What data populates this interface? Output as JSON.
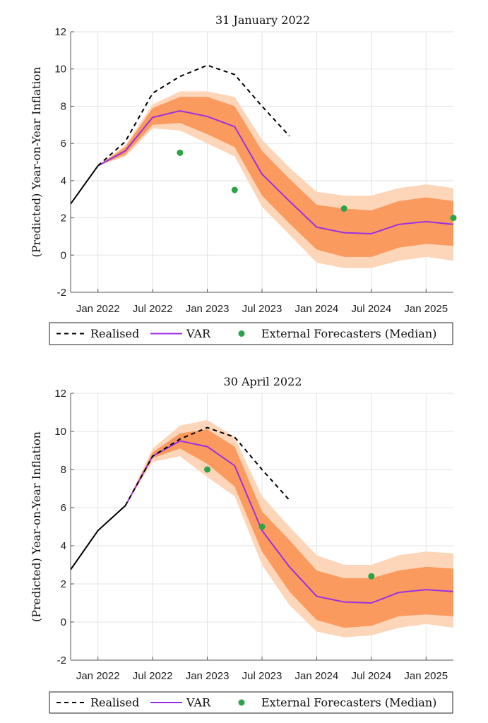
{
  "colors": {
    "realised": "#000000",
    "var": "#9b30e0",
    "inner_band": "#fb9a5e",
    "outer_band": "#fdd5b8",
    "external": "#2ca24a",
    "grid": "#e3e3e3"
  },
  "chart_data": [
    {
      "type": "line",
      "title": "31 January 2022",
      "ylabel": "(Predicted) Year-on-Year Inflation",
      "ylim": [
        -2,
        12
      ],
      "yticks": [
        -2,
        0,
        2,
        4,
        6,
        8,
        10,
        12
      ],
      "x_quarters": [
        "Oct 2021",
        "Jan 2022",
        "Apr 2022",
        "Jul 2022",
        "Oct 2022",
        "Jan 2023",
        "Apr 2023",
        "Jul 2023",
        "Oct 2023",
        "Jan 2024",
        "Apr 2024",
        "Jul 2024",
        "Oct 2024",
        "Jan 2025",
        "Apr 2025"
      ],
      "xticks": [
        {
          "q": 1,
          "label": "Jan 2022"
        },
        {
          "q": 3,
          "label": "Jul 2022"
        },
        {
          "q": 5,
          "label": "Jan 2023"
        },
        {
          "q": 7,
          "label": "Jul 2023"
        },
        {
          "q": 9,
          "label": "Jan 2024"
        },
        {
          "q": 11,
          "label": "Jul 2024"
        },
        {
          "q": 13,
          "label": "Jan 2025"
        }
      ],
      "grid": true,
      "realised": {
        "start_q": 0,
        "solid_until_q": 1,
        "values": [
          2.75,
          4.8,
          6.1,
          8.7,
          9.6,
          10.2,
          9.7,
          8.0,
          6.4
        ]
      },
      "var": {
        "start_q": 1,
        "values": [
          4.8,
          5.6,
          7.4,
          7.75,
          7.45,
          6.9,
          4.35,
          2.9,
          1.5,
          1.2,
          1.15,
          1.65,
          1.8,
          1.65
        ]
      },
      "inner_band": {
        "start_q": 1,
        "upper": [
          4.8,
          5.8,
          7.9,
          8.5,
          8.5,
          8.0,
          5.6,
          4.1,
          2.7,
          2.5,
          2.4,
          2.9,
          3.1,
          2.9
        ],
        "lower": [
          4.8,
          5.4,
          7.0,
          7.1,
          6.5,
          5.8,
          3.2,
          1.7,
          0.3,
          -0.1,
          -0.1,
          0.4,
          0.6,
          0.5
        ]
      },
      "outer_band": {
        "start_q": 1,
        "upper": [
          4.8,
          5.9,
          8.1,
          8.8,
          8.8,
          8.5,
          6.2,
          4.7,
          3.4,
          3.2,
          3.2,
          3.6,
          3.8,
          3.6
        ],
        "lower": [
          4.8,
          5.3,
          6.8,
          6.7,
          6.0,
          5.3,
          2.6,
          1.1,
          -0.4,
          -0.7,
          -0.7,
          -0.3,
          -0.1,
          -0.3
        ]
      },
      "external": [
        {
          "q": 4,
          "value": 5.5
        },
        {
          "q": 6,
          "value": 3.5
        },
        {
          "q": 10,
          "value": 2.5
        },
        {
          "q": 14,
          "value": 2.0
        }
      ],
      "legend": {
        "placement": "bottom",
        "entries": [
          "Realised",
          "VAR",
          "External Forecasters (Median)"
        ]
      }
    },
    {
      "type": "line",
      "title": "30 April 2022",
      "ylabel": "(Predicted) Year-on-Year Inflation",
      "ylim": [
        -2,
        12
      ],
      "yticks": [
        -2,
        0,
        2,
        4,
        6,
        8,
        10,
        12
      ],
      "x_quarters": [
        "Oct 2021",
        "Jan 2022",
        "Apr 2022",
        "Jul 2022",
        "Oct 2022",
        "Jan 2023",
        "Apr 2023",
        "Jul 2023",
        "Oct 2023",
        "Jan 2024",
        "Apr 2024",
        "Jul 2024",
        "Oct 2024",
        "Jan 2025",
        "Apr 2025"
      ],
      "xticks": [
        {
          "q": 1,
          "label": "Jan 2022"
        },
        {
          "q": 3,
          "label": "Jul 2022"
        },
        {
          "q": 5,
          "label": "Jan 2023"
        },
        {
          "q": 7,
          "label": "Jul 2023"
        },
        {
          "q": 9,
          "label": "Jan 2024"
        },
        {
          "q": 11,
          "label": "Jul 2024"
        },
        {
          "q": 13,
          "label": "Jan 2025"
        }
      ],
      "grid": true,
      "realised": {
        "start_q": 0,
        "solid_until_q": 2,
        "values": [
          2.75,
          4.8,
          6.1,
          8.7,
          9.6,
          10.2,
          9.7,
          8.0,
          6.4
        ]
      },
      "var": {
        "start_q": 2,
        "values": [
          6.1,
          8.7,
          9.5,
          9.2,
          8.2,
          4.8,
          2.9,
          1.35,
          1.05,
          1.0,
          1.55,
          1.7,
          1.6
        ]
      },
      "inner_band": {
        "start_q": 2,
        "upper": [
          6.1,
          8.9,
          9.9,
          10.1,
          9.2,
          5.8,
          4.3,
          2.7,
          2.3,
          2.3,
          2.7,
          2.9,
          2.8
        ],
        "lower": [
          6.1,
          8.6,
          9.1,
          8.3,
          7.1,
          3.7,
          1.6,
          0.1,
          -0.3,
          -0.2,
          0.3,
          0.4,
          0.3
        ]
      },
      "outer_band": {
        "start_q": 2,
        "upper": [
          6.1,
          9.1,
          10.3,
          10.6,
          9.7,
          6.6,
          5.0,
          3.5,
          3.0,
          3.0,
          3.5,
          3.7,
          3.6
        ],
        "lower": [
          6.1,
          8.4,
          8.7,
          7.6,
          6.6,
          3.0,
          0.9,
          -0.5,
          -0.8,
          -0.7,
          -0.3,
          -0.1,
          -0.3
        ]
      },
      "external": [
        {
          "q": 5,
          "value": 8.0
        },
        {
          "q": 7,
          "value": 5.0
        },
        {
          "q": 11,
          "value": 2.4
        }
      ],
      "legend": {
        "placement": "bottom",
        "entries": [
          "Realised",
          "VAR",
          "External Forecasters (Median)"
        ]
      }
    }
  ]
}
